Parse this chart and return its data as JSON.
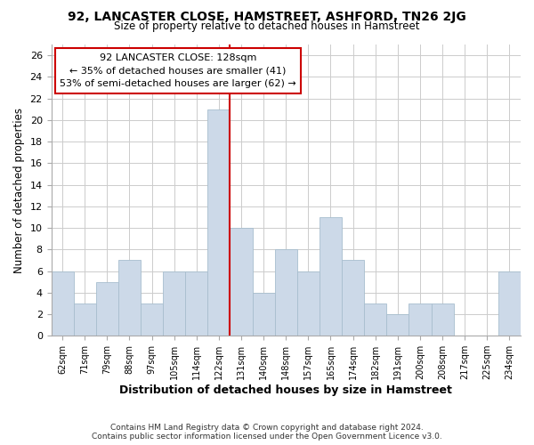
{
  "title": "92, LANCASTER CLOSE, HAMSTREET, ASHFORD, TN26 2JG",
  "subtitle": "Size of property relative to detached houses in Hamstreet",
  "xlabel": "Distribution of detached houses by size in Hamstreet",
  "ylabel": "Number of detached properties",
  "footer_line1": "Contains HM Land Registry data © Crown copyright and database right 2024.",
  "footer_line2": "Contains public sector information licensed under the Open Government Licence v3.0.",
  "bin_labels": [
    "62sqm",
    "71sqm",
    "79sqm",
    "88sqm",
    "97sqm",
    "105sqm",
    "114sqm",
    "122sqm",
    "131sqm",
    "140sqm",
    "148sqm",
    "157sqm",
    "165sqm",
    "174sqm",
    "182sqm",
    "191sqm",
    "200sqm",
    "208sqm",
    "217sqm",
    "225sqm",
    "234sqm"
  ],
  "bar_heights": [
    6,
    3,
    5,
    7,
    3,
    6,
    6,
    21,
    10,
    4,
    8,
    6,
    11,
    7,
    3,
    2,
    3,
    3,
    0,
    0,
    6
  ],
  "bar_color": "#ccd9e8",
  "bar_edge_color": "#a8bece",
  "grid_color": "#cccccc",
  "vline_x_index": 7,
  "vline_color": "#cc0000",
  "annotation_box_edge_color": "#cc0000",
  "annotation_title": "92 LANCASTER CLOSE: 128sqm",
  "annotation_line1": "← 35% of detached houses are smaller (41)",
  "annotation_line2": "53% of semi-detached houses are larger (62) →",
  "ylim": [
    0,
    27
  ],
  "yticks": [
    0,
    2,
    4,
    6,
    8,
    10,
    12,
    14,
    16,
    18,
    20,
    22,
    24,
    26
  ]
}
